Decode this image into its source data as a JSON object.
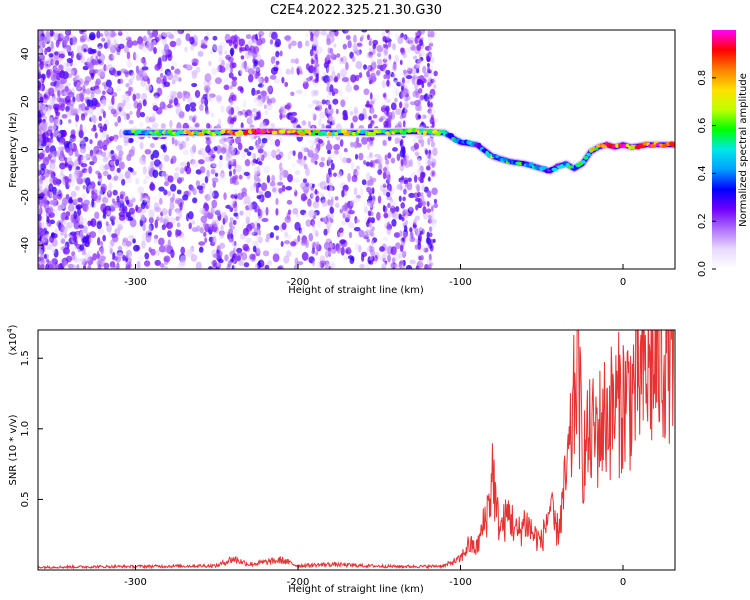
{
  "title": "C2E4.2022.325.21.30.G30",
  "colors": {
    "spectro_stops": [
      "#ffffff",
      "#e8d8ff",
      "#b070ff",
      "#7000ff",
      "#0000ff",
      "#00a0ff",
      "#00e8e8",
      "#00ff00",
      "#c0ff00",
      "#ffe000",
      "#ff8000",
      "#ff0000",
      "#ff00ff"
    ],
    "snr_line": "#e53333"
  },
  "chart_data": [
    {
      "type": "heatmap",
      "xlabel": "Height of straight line (km)",
      "ylabel": "Frequency (Hz)",
      "xlim": [
        -360,
        32
      ],
      "ylim": [
        -50,
        50
      ],
      "xticks": [
        -300,
        -200,
        -100,
        0
      ],
      "yticks": [
        -40,
        -20,
        0,
        20,
        40
      ],
      "colorbar": {
        "label": "Normalized spectral amplitude",
        "range": [
          0.0,
          1.0
        ],
        "ticks": [
          0.0,
          0.2,
          0.4,
          0.6,
          0.8
        ],
        "tick_labels": [
          "0.0",
          "0.2",
          "0.4",
          "0.6",
          "0.8"
        ]
      },
      "ridge": {
        "x": [
          -306,
          -280,
          -250,
          -220,
          -190,
          -160,
          -130,
          -110,
          -100,
          -90,
          -80,
          -70,
          -60,
          -50,
          -45,
          -40,
          -35,
          -30,
          -25,
          -20,
          -15,
          -10,
          -5,
          0,
          5,
          15,
          32
        ],
        "y": [
          7,
          7,
          7,
          7.5,
          7,
          7,
          7.5,
          7,
          3,
          2,
          -3,
          -5,
          -6,
          -8,
          -9,
          -7,
          -6,
          -8,
          -6,
          -1,
          1,
          2,
          1,
          2,
          1,
          2,
          2
        ],
        "peak_amplitude": [
          0.5,
          0.6,
          0.7,
          0.95,
          0.7,
          0.6,
          0.7,
          0.5,
          0.45,
          0.4,
          0.5,
          0.45,
          0.5,
          0.35,
          0.3,
          0.4,
          0.45,
          0.5,
          0.45,
          0.6,
          0.75,
          0.9,
          0.8,
          0.85,
          0.8,
          0.9,
          0.95
        ]
      },
      "background_noise": {
        "x_range": [
          -360,
          -115
        ],
        "extra_columns": [
          -240,
          -225,
          -190,
          -180,
          -155,
          -145,
          -135,
          -125,
          -118
        ],
        "amplitude": [
          0.05,
          0.3
        ]
      }
    },
    {
      "type": "line",
      "xlabel": "Height of straight line (km)",
      "ylabel": "SNR (10 * v/v)",
      "y_multiplier": "(x10",
      "y_multiplier_exp": "4",
      "y_multiplier_close": ")",
      "xlim": [
        -360,
        32
      ],
      "ylim": [
        0,
        17000
      ],
      "xticks": [
        -300,
        -200,
        -100,
        0
      ],
      "yticks": [
        5000,
        10000,
        15000
      ],
      "ytick_labels": [
        "0.5",
        "1.0",
        "1.5"
      ],
      "series": [
        {
          "x": [
            -360,
            -300,
            -250,
            -240,
            -230,
            -210,
            -200,
            -180,
            -160,
            -140,
            -120,
            -110,
            -100,
            -95,
            -90,
            -85,
            -82,
            -80,
            -78,
            -75,
            -70,
            -65,
            -60,
            -55,
            -50,
            -45,
            -42,
            -40,
            -38,
            -35,
            -32,
            -30,
            -28,
            -25,
            -22,
            -20,
            -15,
            -10,
            -5,
            0,
            5,
            10,
            15,
            20,
            25,
            30,
            32
          ],
          "y": [
            200,
            250,
            300,
            800,
            400,
            700,
            300,
            400,
            300,
            250,
            250,
            300,
            800,
            1800,
            1500,
            3500,
            5000,
            7500,
            4000,
            3000,
            4000,
            2500,
            3500,
            2500,
            2000,
            4500,
            3000,
            2800,
            4000,
            6500,
            9000,
            12000,
            15500,
            8000,
            9000,
            9500,
            10000,
            11000,
            11500,
            12000,
            12500,
            13500,
            14000,
            14500,
            15500,
            16500,
            16700
          ]
        }
      ]
    }
  ]
}
